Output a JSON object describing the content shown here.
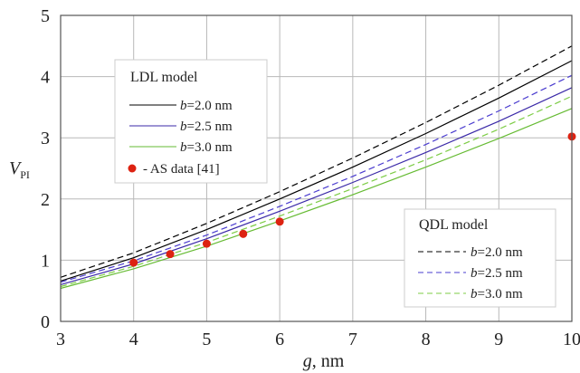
{
  "chart_data": {
    "type": "line",
    "xlabel": "g, nm",
    "xlabel_var": "g",
    "xlabel_unit": ", nm",
    "ylabel_var": "V",
    "ylabel_sub": "PI",
    "xlim": [
      3,
      10
    ],
    "ylim": [
      0,
      5
    ],
    "xticks": [
      3,
      4,
      5,
      6,
      7,
      8,
      9,
      10
    ],
    "yticks": [
      0,
      1,
      2,
      3,
      4,
      5
    ],
    "grid": true,
    "legends": [
      {
        "title": "LDL model",
        "placement": "upper-left",
        "entries": [
          {
            "var": "b",
            "text": "=2.0 nm",
            "series": 0
          },
          {
            "var": "b",
            "text": "=2.5 nm",
            "series": 1
          },
          {
            "var": "b",
            "text": "=3.0 nm",
            "series": 2
          },
          {
            "var": "",
            "text": " - AS data [41]",
            "series": 6
          }
        ]
      },
      {
        "title": "QDL model",
        "placement": "lower-right",
        "entries": [
          {
            "var": "b",
            "text": "=2.0 nm",
            "series": 3
          },
          {
            "var": "b",
            "text": "=2.5 nm",
            "series": 4
          },
          {
            "var": "b",
            "text": "=3.0 nm",
            "series": 5
          }
        ]
      }
    ],
    "series": [
      {
        "model": "LDL",
        "b": "2.0 nm",
        "color": "#000000",
        "dash": "solid",
        "x": [
          3,
          4,
          5,
          6,
          7,
          8,
          9,
          10
        ],
        "y": [
          0.66,
          1.04,
          1.5,
          2.0,
          2.52,
          3.07,
          3.65,
          4.26
        ]
      },
      {
        "model": "LDL",
        "b": "2.5 nm",
        "color": "#3b2aa8",
        "dash": "solid",
        "x": [
          3,
          4,
          5,
          6,
          7,
          8,
          9,
          10
        ],
        "y": [
          0.6,
          0.94,
          1.35,
          1.8,
          2.27,
          2.76,
          3.27,
          3.82
        ]
      },
      {
        "model": "LDL",
        "b": "3.0 nm",
        "color": "#66bb33",
        "dash": "solid",
        "x": [
          3,
          4,
          5,
          6,
          7,
          8,
          9,
          10
        ],
        "y": [
          0.54,
          0.86,
          1.23,
          1.64,
          2.07,
          2.52,
          2.99,
          3.48
        ]
      },
      {
        "model": "QDL",
        "b": "2.0 nm",
        "color": "#000000",
        "dash": "dashed",
        "x": [
          3,
          4,
          5,
          6,
          7,
          8,
          9,
          10
        ],
        "y": [
          0.72,
          1.12,
          1.6,
          2.12,
          2.67,
          3.25,
          3.86,
          4.5
        ]
      },
      {
        "model": "QDL",
        "b": "2.5 nm",
        "color": "#4a3ccf",
        "dash": "dashed",
        "x": [
          3,
          4,
          5,
          6,
          7,
          8,
          9,
          10
        ],
        "y": [
          0.64,
          0.99,
          1.41,
          1.88,
          2.37,
          2.89,
          3.44,
          4.02
        ]
      },
      {
        "model": "QDL",
        "b": "3.0 nm",
        "color": "#7ccc44",
        "dash": "dashed",
        "x": [
          3,
          4,
          5,
          6,
          7,
          8,
          9,
          10
        ],
        "y": [
          0.57,
          0.9,
          1.29,
          1.72,
          2.17,
          2.64,
          3.14,
          3.68
        ]
      },
      {
        "model": "AS data [41]",
        "color": "#dd2211",
        "marker": "circle",
        "type": "scatter",
        "x": [
          4,
          4.5,
          5,
          5.5,
          6,
          10
        ],
        "y": [
          0.96,
          1.1,
          1.27,
          1.43,
          1.63,
          3.02
        ]
      }
    ]
  }
}
